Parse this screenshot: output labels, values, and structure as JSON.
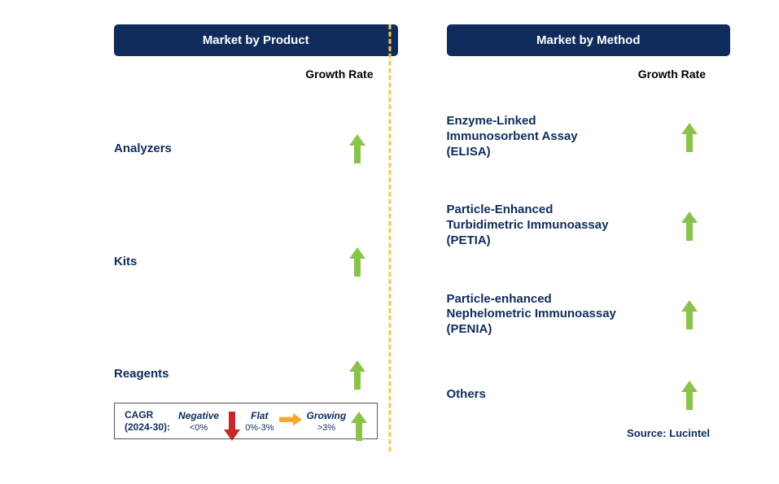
{
  "colors": {
    "header_bg": "#0f2c5c",
    "header_text": "#ffffff",
    "label_text": "#0f2c5c",
    "growth_rate_text": "#000000",
    "divider": "#f7c948",
    "arrow_up": "#8bc34a",
    "arrow_down": "#c62828",
    "arrow_right": "#f9a825"
  },
  "left_panel": {
    "title": "Market by Product",
    "column_header": "Growth Rate",
    "rows": [
      {
        "label": "Analyzers",
        "direction": "up"
      },
      {
        "label": "Kits",
        "direction": "up"
      },
      {
        "label": "Reagents",
        "direction": "up"
      }
    ]
  },
  "right_panel": {
    "title": "Market by Method",
    "column_header": "Growth Rate",
    "rows": [
      {
        "label": "Enzyme-Linked Immunosorbent Assay (ELISA)",
        "direction": "up"
      },
      {
        "label": "Particle-Enhanced Turbidimetric Immunoassay (PETIA)",
        "direction": "up"
      },
      {
        "label": "Particle-enhanced Nephelometric Immunoassay (PENIA)",
        "direction": "up"
      },
      {
        "label": "Others",
        "direction": "up"
      }
    ]
  },
  "legend": {
    "cagr_label_line1": "CAGR",
    "cagr_label_line2": "(2024-30):",
    "items": [
      {
        "label": "Negative",
        "range": "<0%",
        "icon": "down"
      },
      {
        "label": "Flat",
        "range": "0%-3%",
        "icon": "right"
      },
      {
        "label": "Growing",
        "range": ">3%",
        "icon": "up"
      }
    ]
  },
  "source": "Source: Lucintel"
}
